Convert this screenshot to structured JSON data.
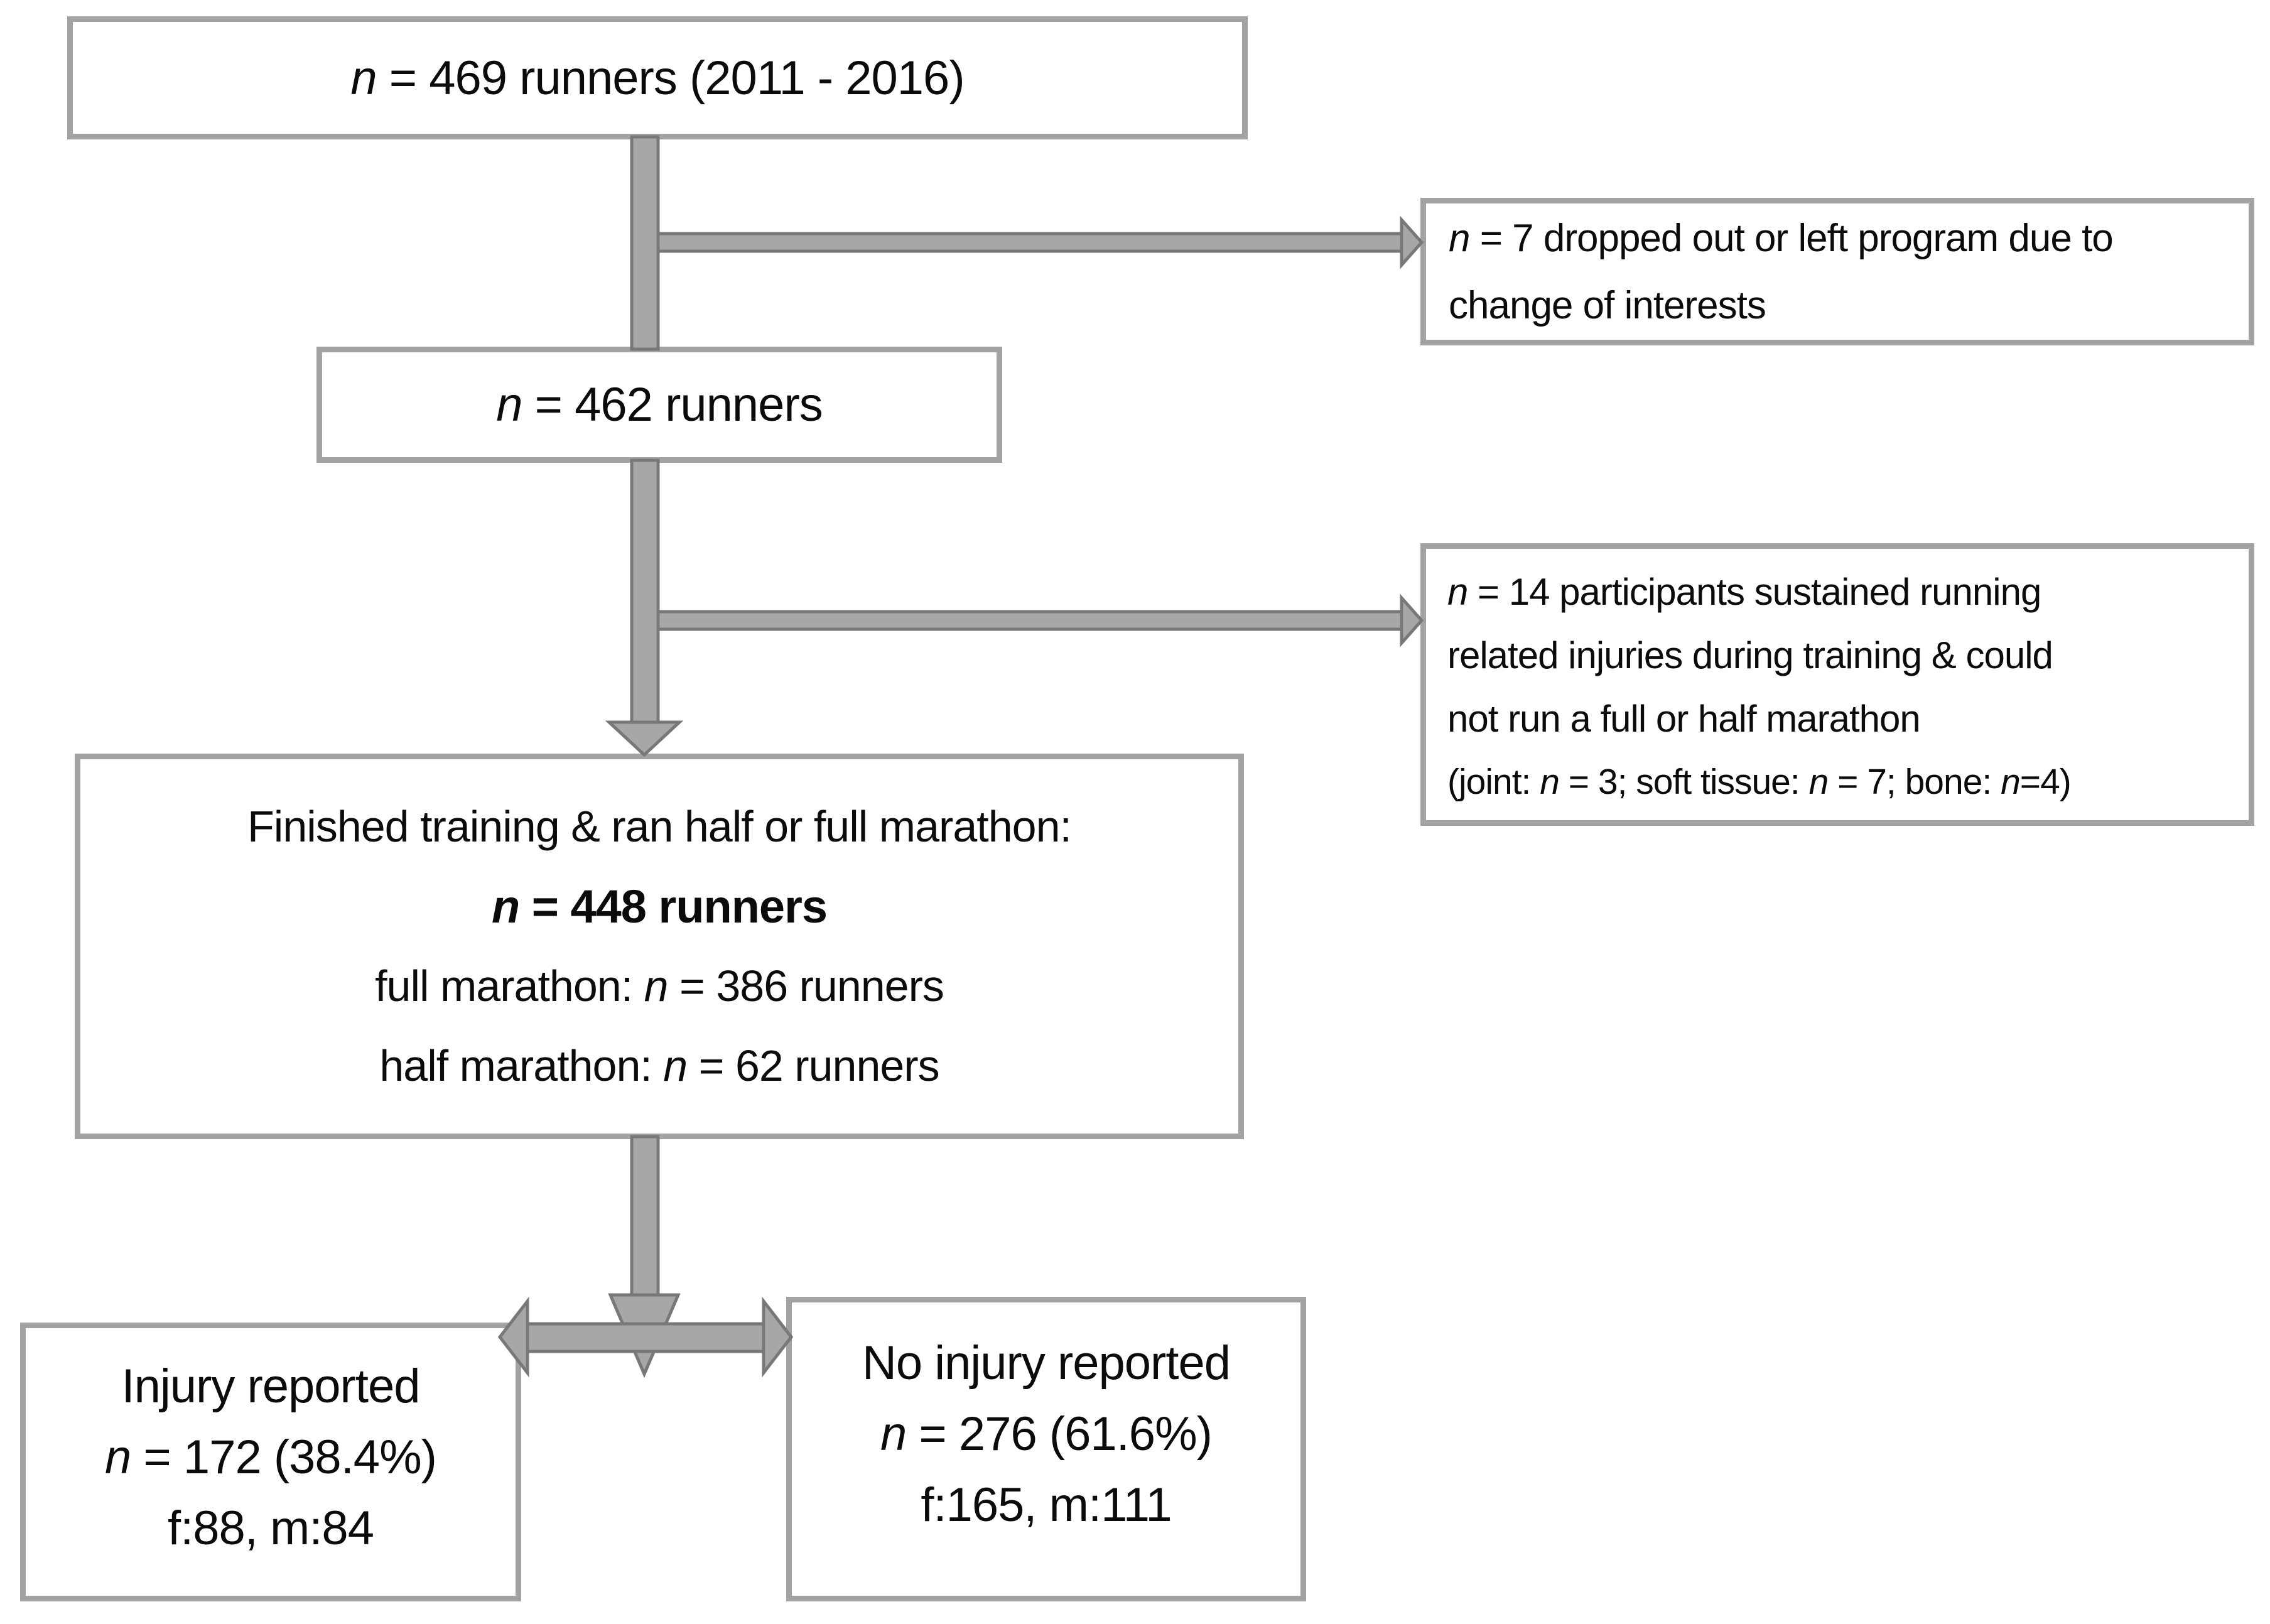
{
  "colors": {
    "background": "#ffffff",
    "box_border": "#a3a3a3",
    "arrow_fill": "#a7a7a7",
    "arrow_outline": "#787878",
    "text": "#0b0b0b"
  },
  "boxes": {
    "total": {
      "lines": [
        {
          "segs": [
            {
              "t": "n",
              "i": 1
            },
            {
              "t": " = 469 runners (2011 - 2016)"
            }
          ]
        }
      ]
    },
    "dropout": {
      "lines": [
        {
          "segs": [
            {
              "t": "n",
              "i": 1
            },
            {
              "t": " = 7 dropped out or left program due to"
            }
          ]
        },
        {
          "segs": [
            {
              "t": "change of interests"
            }
          ]
        }
      ]
    },
    "after_dropout": {
      "lines": [
        {
          "segs": [
            {
              "t": "n",
              "i": 1
            },
            {
              "t": " = 462 runners"
            }
          ]
        }
      ]
    },
    "training_injuries": {
      "lines": [
        {
          "segs": [
            {
              "t": "n",
              "i": 1
            },
            {
              "t": " = 14 participants sustained running"
            }
          ]
        },
        {
          "segs": [
            {
              "t": "related injuries during training & could"
            }
          ]
        },
        {
          "segs": [
            {
              "t": "not run a full or half marathon"
            }
          ]
        },
        {
          "segs": [
            {
              "t": "(joint: "
            },
            {
              "t": "n",
              "i": 1
            },
            {
              "t": " = 3; soft tissue: "
            },
            {
              "t": "n",
              "i": 1
            },
            {
              "t": " = 7; bone: "
            },
            {
              "t": "n",
              "i": 1
            },
            {
              "t": "=4)"
            }
          ]
        }
      ]
    },
    "finished": {
      "lines": [
        {
          "segs": [
            {
              "t": "Finished training & ran half or full marathon:"
            }
          ]
        },
        {
          "segs": [
            {
              "t": "n",
              "i": 1,
              "b": 1
            },
            {
              "t": " = 448 runners",
              "b": 1
            }
          ]
        },
        {
          "segs": [
            {
              "t": "full marathon: "
            },
            {
              "t": "n",
              "i": 1
            },
            {
              "t": " = 386 runners"
            }
          ]
        },
        {
          "segs": [
            {
              "t": "half marathon: "
            },
            {
              "t": "n",
              "i": 1
            },
            {
              "t": " = 62 runners"
            }
          ]
        }
      ]
    },
    "injury": {
      "lines": [
        {
          "segs": [
            {
              "t": "Injury reported"
            }
          ]
        },
        {
          "segs": [
            {
              "t": "n",
              "i": 1
            },
            {
              "t": " = 172 (38.4%)"
            }
          ]
        },
        {
          "segs": [
            {
              "t": "f:88, m:84"
            }
          ]
        }
      ]
    },
    "no_injury": {
      "lines": [
        {
          "segs": [
            {
              "t": "No injury reported"
            }
          ]
        },
        {
          "segs": [
            {
              "t": "n",
              "i": 1
            },
            {
              "t": " = 276 (61.6%)"
            }
          ]
        },
        {
          "segs": [
            {
              "t": "f:165, m:111"
            }
          ]
        }
      ]
    }
  }
}
